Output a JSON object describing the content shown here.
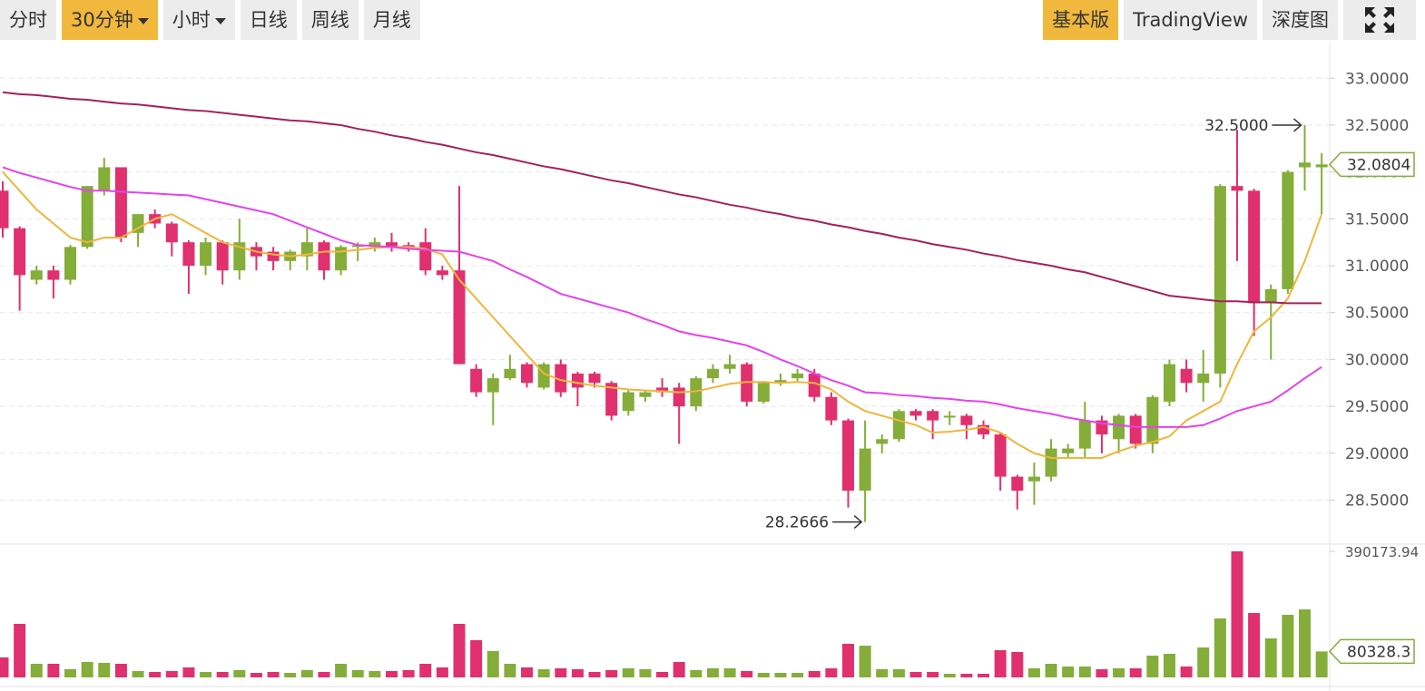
{
  "toolbar": {
    "left": [
      "分时",
      "30分钟",
      "小时",
      "日线",
      "周线",
      "月线"
    ],
    "right": [
      "基本版",
      "TradingView",
      "深度图"
    ]
  },
  "chart_data": {
    "type": "candlestick",
    "ylim": [
      28.05,
      33.37
    ],
    "yticks": [
      {
        "value": 33,
        "label": "33.0000"
      },
      {
        "value": 32.5,
        "label": "32.5000"
      },
      {
        "value": 32,
        "label": "32.0000"
      },
      {
        "value": 31.5,
        "label": "31.5000"
      },
      {
        "value": 31,
        "label": "31.0000"
      },
      {
        "value": 30.5,
        "label": "30.5000"
      },
      {
        "value": 30,
        "label": "30.0000"
      },
      {
        "value": 29.5,
        "label": "29.5000"
      },
      {
        "value": 29,
        "label": "29.0000"
      },
      {
        "value": 28.5,
        "label": "28.5000"
      }
    ],
    "grid": true,
    "up_color": "#84ad3a",
    "down_color": "#e0306e",
    "open": [
      31.8,
      31.4,
      30.85,
      30.95,
      30.85,
      31.2,
      31.8,
      32.05,
      31.35,
      31.55,
      31.45,
      31.25,
      31.0,
      31.25,
      30.95,
      31.2,
      31.15,
      31.05,
      31.1,
      31.25,
      30.95,
      31.2,
      31.2,
      31.25,
      31.22,
      31.25,
      30.95,
      30.95,
      29.9,
      29.65,
      29.8,
      29.95,
      29.7,
      29.95,
      29.85,
      29.85,
      29.75,
      29.45,
      29.6,
      29.7,
      29.7,
      29.5,
      29.8,
      29.9,
      29.95,
      29.55,
      29.75,
      29.8,
      29.85,
      29.6,
      29.35,
      28.6,
      29.1,
      29.15,
      29.45,
      29.45,
      29.38,
      29.4,
      29.3,
      29.2,
      28.75,
      28.7,
      28.75,
      29.0,
      29.05,
      29.35,
      29.15,
      29.4,
      29.1,
      29.55,
      29.9,
      29.75,
      29.85,
      31.85,
      31.8,
      30.6,
      30.75,
      32.05,
      32.05
    ],
    "high": [
      31.9,
      31.42,
      31.0,
      31.0,
      31.22,
      31.85,
      32.15,
      32.05,
      31.55,
      31.6,
      31.47,
      31.27,
      31.3,
      31.27,
      31.5,
      31.25,
      31.2,
      31.17,
      31.4,
      31.27,
      31.22,
      31.25,
      31.3,
      31.35,
      31.25,
      31.4,
      31.0,
      31.85,
      29.95,
      29.85,
      30.05,
      29.97,
      29.97,
      30.0,
      29.87,
      29.87,
      29.77,
      29.67,
      29.67,
      29.8,
      29.75,
      29.82,
      29.95,
      30.05,
      29.97,
      29.77,
      29.85,
      29.9,
      29.9,
      29.65,
      29.37,
      29.35,
      29.2,
      29.47,
      29.47,
      29.47,
      29.45,
      29.42,
      29.35,
      29.22,
      28.77,
      28.9,
      29.15,
      29.1,
      29.55,
      29.4,
      29.42,
      29.42,
      29.62,
      30.0,
      30.0,
      30.1,
      31.87,
      32.45,
      31.82,
      30.8,
      32.02,
      32.5,
      32.2
    ],
    "low": [
      31.3,
      30.52,
      30.8,
      30.65,
      30.8,
      31.18,
      31.75,
      31.25,
      31.2,
      31.4,
      31.1,
      30.7,
      30.9,
      30.8,
      30.85,
      30.95,
      30.95,
      30.95,
      30.95,
      30.85,
      30.9,
      31.05,
      31.15,
      31.15,
      31.15,
      30.9,
      30.85,
      29.95,
      29.6,
      29.3,
      29.78,
      29.7,
      29.68,
      29.6,
      29.5,
      29.7,
      29.35,
      29.4,
      29.55,
      29.6,
      29.1,
      29.45,
      29.75,
      29.85,
      29.5,
      29.53,
      29.72,
      29.77,
      29.55,
      29.3,
      28.42,
      28.2666,
      29.0,
      29.12,
      29.35,
      29.15,
      29.3,
      29.15,
      29.15,
      28.6,
      28.4,
      28.45,
      28.7,
      28.95,
      28.95,
      29.0,
      29.0,
      29.05,
      29.0,
      29.5,
      29.65,
      29.55,
      29.7,
      31.05,
      30.25,
      30.0,
      30.7,
      31.8,
      31.55
    ],
    "close": [
      31.4,
      30.9,
      30.95,
      30.85,
      31.2,
      31.85,
      32.05,
      31.3,
      31.55,
      31.45,
      31.25,
      31.0,
      31.25,
      30.95,
      31.25,
      31.1,
      31.05,
      31.15,
      31.25,
      30.95,
      31.2,
      31.22,
      31.25,
      31.2,
      31.2,
      30.95,
      30.9,
      29.95,
      29.65,
      29.8,
      29.9,
      29.75,
      29.95,
      29.65,
      29.7,
      29.75,
      29.4,
      29.65,
      29.65,
      29.65,
      29.5,
      29.8,
      29.9,
      29.95,
      29.55,
      29.75,
      29.78,
      29.85,
      29.6,
      29.35,
      28.6,
      29.05,
      29.15,
      29.45,
      29.4,
      29.35,
      29.4,
      29.3,
      29.2,
      28.75,
      28.6,
      28.75,
      29.05,
      29.05,
      29.35,
      29.2,
      29.4,
      29.1,
      29.6,
      29.95,
      29.75,
      29.85,
      31.85,
      31.8,
      30.6,
      30.75,
      32.0,
      32.1,
      32.0804
    ],
    "moving_averages": [
      {
        "color": "#f0b53a",
        "values": [
          32.0,
          31.8,
          31.6,
          31.45,
          31.3,
          31.25,
          31.3,
          31.3,
          31.4,
          31.5,
          31.55,
          31.45,
          31.35,
          31.25,
          31.2,
          31.15,
          31.12,
          31.1,
          31.12,
          31.15,
          31.15,
          31.17,
          31.19,
          31.2,
          31.2,
          31.18,
          31.12,
          30.85,
          30.65,
          30.45,
          30.25,
          30.05,
          29.85,
          29.78,
          29.75,
          29.72,
          29.7,
          29.68,
          29.67,
          29.66,
          29.65,
          29.66,
          29.7,
          29.74,
          29.76,
          29.76,
          29.75,
          29.76,
          29.75,
          29.68,
          29.55,
          29.45,
          29.4,
          29.35,
          29.3,
          29.22,
          29.23,
          29.25,
          29.28,
          29.22,
          29.1,
          29.0,
          28.95,
          28.95,
          28.95,
          28.95,
          29.02,
          29.08,
          29.12,
          29.18,
          29.35,
          29.45,
          29.55,
          29.95,
          30.3,
          30.45,
          30.65,
          31.05,
          31.55
        ]
      },
      {
        "color": "#e542ee",
        "values": [
          32.05,
          31.99,
          31.94,
          31.89,
          31.84,
          31.8,
          31.8,
          31.79,
          31.78,
          31.77,
          31.76,
          31.75,
          31.71,
          31.67,
          31.63,
          31.59,
          31.55,
          31.48,
          31.41,
          31.34,
          31.27,
          31.22,
          31.21,
          31.2,
          31.18,
          31.17,
          31.16,
          31.15,
          31.1,
          31.05,
          30.96,
          30.88,
          30.79,
          30.7,
          30.65,
          30.6,
          30.55,
          30.5,
          30.43,
          30.37,
          30.3,
          30.26,
          30.23,
          30.19,
          30.15,
          30.08,
          30.0,
          29.93,
          29.85,
          29.78,
          29.72,
          29.65,
          29.64,
          29.62,
          29.61,
          29.59,
          29.58,
          29.56,
          29.55,
          29.52,
          29.48,
          29.45,
          29.42,
          29.38,
          29.35,
          29.32,
          29.3,
          29.28,
          29.28,
          29.28,
          29.28,
          29.3,
          29.37,
          29.45,
          29.5,
          29.55,
          29.67,
          29.8,
          29.92
        ]
      },
      {
        "color": "#a3215a",
        "values": [
          32.85,
          32.83,
          32.82,
          32.8,
          32.78,
          32.77,
          32.75,
          32.73,
          32.72,
          32.7,
          32.68,
          32.66,
          32.65,
          32.63,
          32.61,
          32.59,
          32.57,
          32.55,
          32.54,
          32.52,
          32.5,
          32.46,
          32.43,
          32.39,
          32.36,
          32.32,
          32.29,
          32.25,
          32.21,
          32.18,
          32.14,
          32.1,
          32.06,
          32.03,
          31.99,
          31.95,
          31.91,
          31.88,
          31.84,
          31.8,
          31.76,
          31.73,
          31.69,
          31.65,
          31.62,
          31.58,
          31.55,
          31.51,
          31.48,
          31.44,
          31.41,
          31.37,
          31.34,
          31.3,
          31.27,
          31.23,
          31.2,
          31.17,
          31.13,
          31.1,
          31.06,
          31.03,
          31.0,
          30.96,
          30.93,
          30.88,
          30.83,
          30.78,
          30.73,
          30.68,
          30.66,
          30.64,
          30.62,
          30.62,
          30.61,
          30.61,
          30.6,
          30.6,
          30.6
        ]
      }
    ],
    "high_marker": {
      "value": 32.5,
      "label": "32.5000"
    },
    "low_marker": 28.2666,
    "last_price": 32.0804,
    "volume": [
      62000,
      165600,
      42100,
      42100,
      25300,
      47700,
      44900,
      42100,
      19600,
      16800,
      19600,
      30900,
      16800,
      16800,
      22500,
      14000,
      16800,
      14000,
      22500,
      16800,
      42100,
      22500,
      19600,
      19600,
      22500,
      42100,
      30900,
      165600,
      115100,
      81400,
      42100,
      30900,
      25300,
      28100,
      25300,
      16800,
      22500,
      28100,
      25300,
      16800,
      47700,
      22500,
      28100,
      28100,
      19600,
      14000,
      14000,
      14000,
      19600,
      28100,
      103900,
      98200,
      25300,
      25300,
      16800,
      16800,
      11200,
      11200,
      11200,
      84200,
      78600,
      28100,
      42100,
      33700,
      33700,
      25300,
      28100,
      28100,
      67400,
      73000,
      33700,
      92600,
      182500,
      390173.94,
      199300,
      120700,
      193700,
      210500,
      80328.3
    ],
    "vlim": [
      0,
      390173.94
    ],
    "vticks": [
      390173.94
    ],
    "last_volume": 80328.3
  }
}
